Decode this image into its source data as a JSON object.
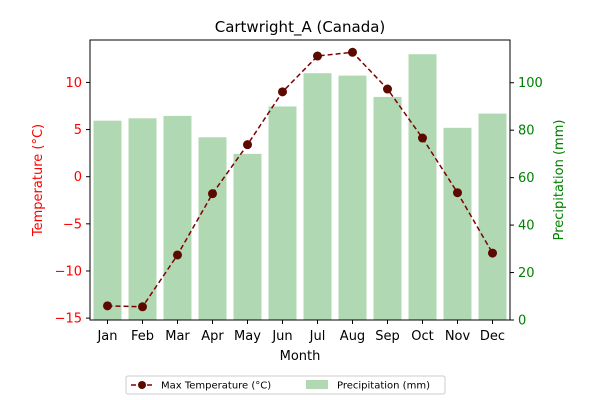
{
  "chart_data": {
    "type": "bar+line",
    "title": "Cartwright_A (Canada)",
    "xlabel": "Month",
    "categories": [
      "Jan",
      "Feb",
      "Mar",
      "Apr",
      "May",
      "Jun",
      "Jul",
      "Aug",
      "Sep",
      "Oct",
      "Nov",
      "Dec"
    ],
    "left_axis": {
      "label": "Temperature (°C)",
      "color": "#ff0000",
      "ylim": [
        -15.2,
        14.5
      ],
      "ticks": [
        -15,
        -10,
        -5,
        0,
        5,
        10
      ],
      "tick_labels": [
        "−15",
        "−10",
        "−5",
        "0",
        "5",
        "10"
      ]
    },
    "right_axis": {
      "label": "Precipitation (mm)",
      "color": "#008000",
      "ylim": [
        0,
        118
      ],
      "ticks": [
        0,
        20,
        40,
        60,
        80,
        100
      ],
      "tick_labels": [
        "0",
        "20",
        "40",
        "60",
        "80",
        "100"
      ]
    },
    "series": [
      {
        "name": "Max Temperature (°C)",
        "kind": "line",
        "axis": "left",
        "color": "#800000",
        "marker_color": "#5c0a00",
        "values": [
          -13.7,
          -13.8,
          -8.3,
          -1.8,
          3.4,
          9.0,
          12.8,
          13.2,
          9.3,
          4.1,
          -1.7,
          -8.1
        ]
      },
      {
        "name": "Precipitation (mm)",
        "kind": "bar",
        "axis": "right",
        "color": "#b0d8b3",
        "values": [
          84,
          85,
          86,
          77,
          70,
          90,
          104,
          103,
          94,
          112,
          81,
          87
        ]
      }
    ],
    "legend": {
      "position": "bottom-center",
      "ncol": 2
    },
    "grid": false
  }
}
